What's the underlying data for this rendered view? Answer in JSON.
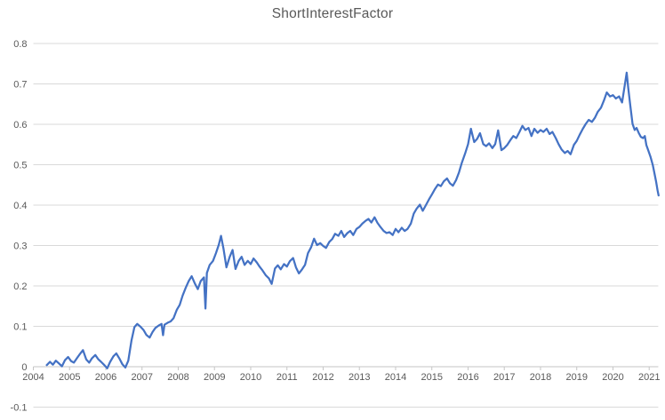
{
  "chart_data": {
    "type": "line",
    "title": "ShortInterestFactor",
    "xlabel": "",
    "ylabel": "",
    "xlim": [
      2004,
      2021.25
    ],
    "ylim": [
      -0.1,
      0.8
    ],
    "grid": "horizontal-only",
    "legend": "none",
    "xticks": [
      "2004",
      "2005",
      "2006",
      "2007",
      "2008",
      "2009",
      "2010",
      "2011",
      "2012",
      "2013",
      "2014",
      "2015",
      "2016",
      "2017",
      "2018",
      "2019",
      "2020",
      "2021"
    ],
    "yticks": [
      {
        "value": 0.8,
        "label": "0.8"
      },
      {
        "value": 0.7,
        "label": "0.7"
      },
      {
        "value": 0.6,
        "label": "0.6"
      },
      {
        "value": 0.5,
        "label": "0.5"
      },
      {
        "value": 0.4,
        "label": "0.4"
      },
      {
        "value": 0.3,
        "label": "0.3"
      },
      {
        "value": 0.2,
        "label": "0.2"
      },
      {
        "value": 0.1,
        "label": "0.1"
      },
      {
        "value": 0,
        "label": "0"
      },
      {
        "value": -0.1,
        "label": "-0.1"
      }
    ],
    "colors": {
      "series": "#4472C4",
      "gridline": "#D9D9D9",
      "axis_line": "#C6C6C6",
      "axis_text": "#595959",
      "title_text": "#595959",
      "background": "#FFFFFF"
    },
    "series": [
      {
        "name": "ShortInterestFactor",
        "color": "#4472C4",
        "points": [
          [
            2004.37,
            0.004
          ],
          [
            2004.46,
            0.012
          ],
          [
            2004.54,
            0.005
          ],
          [
            2004.62,
            0.015
          ],
          [
            2004.71,
            0.008
          ],
          [
            2004.79,
            0.001
          ],
          [
            2004.87,
            0.016
          ],
          [
            2004.96,
            0.024
          ],
          [
            2005.04,
            0.014
          ],
          [
            2005.12,
            0.01
          ],
          [
            2005.21,
            0.022
          ],
          [
            2005.29,
            0.032
          ],
          [
            2005.37,
            0.041
          ],
          [
            2005.46,
            0.018
          ],
          [
            2005.54,
            0.01
          ],
          [
            2005.62,
            0.021
          ],
          [
            2005.71,
            0.029
          ],
          [
            2005.79,
            0.019
          ],
          [
            2005.87,
            0.012
          ],
          [
            2005.96,
            0.004
          ],
          [
            2006.04,
            -0.004
          ],
          [
            2006.12,
            0.012
          ],
          [
            2006.21,
            0.026
          ],
          [
            2006.29,
            0.033
          ],
          [
            2006.37,
            0.021
          ],
          [
            2006.46,
            0.006
          ],
          [
            2006.54,
            -0.002
          ],
          [
            2006.62,
            0.015
          ],
          [
            2006.71,
            0.065
          ],
          [
            2006.79,
            0.098
          ],
          [
            2006.87,
            0.106
          ],
          [
            2006.96,
            0.099
          ],
          [
            2007.04,
            0.091
          ],
          [
            2007.12,
            0.079
          ],
          [
            2007.21,
            0.072
          ],
          [
            2007.29,
            0.086
          ],
          [
            2007.37,
            0.096
          ],
          [
            2007.46,
            0.102
          ],
          [
            2007.54,
            0.106
          ],
          [
            2007.58,
            0.078
          ],
          [
            2007.62,
            0.104
          ],
          [
            2007.71,
            0.109
          ],
          [
            2007.79,
            0.112
          ],
          [
            2007.87,
            0.12
          ],
          [
            2007.96,
            0.141
          ],
          [
            2008.04,
            0.153
          ],
          [
            2008.12,
            0.176
          ],
          [
            2008.21,
            0.196
          ],
          [
            2008.29,
            0.212
          ],
          [
            2008.37,
            0.224
          ],
          [
            2008.46,
            0.206
          ],
          [
            2008.54,
            0.192
          ],
          [
            2008.62,
            0.212
          ],
          [
            2008.71,
            0.221
          ],
          [
            2008.75,
            0.144
          ],
          [
            2008.79,
            0.232
          ],
          [
            2008.87,
            0.252
          ],
          [
            2008.96,
            0.262
          ],
          [
            2009.04,
            0.281
          ],
          [
            2009.12,
            0.302
          ],
          [
            2009.18,
            0.324
          ],
          [
            2009.25,
            0.292
          ],
          [
            2009.33,
            0.246
          ],
          [
            2009.42,
            0.272
          ],
          [
            2009.5,
            0.289
          ],
          [
            2009.58,
            0.242
          ],
          [
            2009.67,
            0.262
          ],
          [
            2009.75,
            0.272
          ],
          [
            2009.83,
            0.252
          ],
          [
            2009.92,
            0.262
          ],
          [
            2010.0,
            0.254
          ],
          [
            2010.08,
            0.268
          ],
          [
            2010.17,
            0.258
          ],
          [
            2010.25,
            0.247
          ],
          [
            2010.33,
            0.238
          ],
          [
            2010.42,
            0.226
          ],
          [
            2010.5,
            0.219
          ],
          [
            2010.58,
            0.205
          ],
          [
            2010.67,
            0.243
          ],
          [
            2010.75,
            0.251
          ],
          [
            2010.83,
            0.241
          ],
          [
            2010.92,
            0.254
          ],
          [
            2011.0,
            0.248
          ],
          [
            2011.08,
            0.261
          ],
          [
            2011.17,
            0.269
          ],
          [
            2011.25,
            0.246
          ],
          [
            2011.33,
            0.231
          ],
          [
            2011.42,
            0.241
          ],
          [
            2011.5,
            0.252
          ],
          [
            2011.58,
            0.281
          ],
          [
            2011.67,
            0.296
          ],
          [
            2011.75,
            0.317
          ],
          [
            2011.83,
            0.301
          ],
          [
            2011.92,
            0.306
          ],
          [
            2012.0,
            0.299
          ],
          [
            2012.08,
            0.294
          ],
          [
            2012.17,
            0.309
          ],
          [
            2012.25,
            0.316
          ],
          [
            2012.33,
            0.329
          ],
          [
            2012.42,
            0.324
          ],
          [
            2012.5,
            0.336
          ],
          [
            2012.58,
            0.321
          ],
          [
            2012.67,
            0.331
          ],
          [
            2012.75,
            0.336
          ],
          [
            2012.83,
            0.326
          ],
          [
            2012.92,
            0.341
          ],
          [
            2013.0,
            0.346
          ],
          [
            2013.08,
            0.354
          ],
          [
            2013.17,
            0.361
          ],
          [
            2013.25,
            0.366
          ],
          [
            2013.33,
            0.357
          ],
          [
            2013.42,
            0.37
          ],
          [
            2013.5,
            0.356
          ],
          [
            2013.58,
            0.346
          ],
          [
            2013.67,
            0.336
          ],
          [
            2013.75,
            0.331
          ],
          [
            2013.83,
            0.333
          ],
          [
            2013.92,
            0.326
          ],
          [
            2014.0,
            0.341
          ],
          [
            2014.08,
            0.333
          ],
          [
            2014.17,
            0.344
          ],
          [
            2014.25,
            0.336
          ],
          [
            2014.33,
            0.341
          ],
          [
            2014.42,
            0.354
          ],
          [
            2014.5,
            0.379
          ],
          [
            2014.58,
            0.391
          ],
          [
            2014.67,
            0.401
          ],
          [
            2014.75,
            0.386
          ],
          [
            2014.83,
            0.399
          ],
          [
            2014.92,
            0.414
          ],
          [
            2015.0,
            0.426
          ],
          [
            2015.08,
            0.439
          ],
          [
            2015.17,
            0.451
          ],
          [
            2015.25,
            0.447
          ],
          [
            2015.33,
            0.459
          ],
          [
            2015.42,
            0.466
          ],
          [
            2015.5,
            0.454
          ],
          [
            2015.58,
            0.448
          ],
          [
            2015.67,
            0.462
          ],
          [
            2015.75,
            0.481
          ],
          [
            2015.83,
            0.505
          ],
          [
            2015.92,
            0.528
          ],
          [
            2016.0,
            0.551
          ],
          [
            2016.08,
            0.589
          ],
          [
            2016.17,
            0.556
          ],
          [
            2016.25,
            0.564
          ],
          [
            2016.33,
            0.578
          ],
          [
            2016.42,
            0.551
          ],
          [
            2016.5,
            0.546
          ],
          [
            2016.58,
            0.553
          ],
          [
            2016.67,
            0.541
          ],
          [
            2016.75,
            0.551
          ],
          [
            2016.83,
            0.585
          ],
          [
            2016.92,
            0.536
          ],
          [
            2017.0,
            0.541
          ],
          [
            2017.08,
            0.549
          ],
          [
            2017.17,
            0.561
          ],
          [
            2017.25,
            0.571
          ],
          [
            2017.33,
            0.566
          ],
          [
            2017.42,
            0.581
          ],
          [
            2017.5,
            0.596
          ],
          [
            2017.58,
            0.586
          ],
          [
            2017.67,
            0.591
          ],
          [
            2017.75,
            0.571
          ],
          [
            2017.83,
            0.589
          ],
          [
            2017.92,
            0.579
          ],
          [
            2018.0,
            0.586
          ],
          [
            2018.08,
            0.581
          ],
          [
            2018.17,
            0.589
          ],
          [
            2018.25,
            0.576
          ],
          [
            2018.33,
            0.581
          ],
          [
            2018.42,
            0.566
          ],
          [
            2018.5,
            0.551
          ],
          [
            2018.58,
            0.538
          ],
          [
            2018.67,
            0.529
          ],
          [
            2018.75,
            0.534
          ],
          [
            2018.83,
            0.526
          ],
          [
            2018.92,
            0.549
          ],
          [
            2019.0,
            0.559
          ],
          [
            2019.08,
            0.574
          ],
          [
            2019.17,
            0.589
          ],
          [
            2019.25,
            0.601
          ],
          [
            2019.33,
            0.611
          ],
          [
            2019.42,
            0.606
          ],
          [
            2019.5,
            0.616
          ],
          [
            2019.58,
            0.631
          ],
          [
            2019.67,
            0.641
          ],
          [
            2019.75,
            0.659
          ],
          [
            2019.83,
            0.679
          ],
          [
            2019.92,
            0.669
          ],
          [
            2020.0,
            0.672
          ],
          [
            2020.08,
            0.664
          ],
          [
            2020.17,
            0.669
          ],
          [
            2020.25,
            0.654
          ],
          [
            2020.33,
            0.699
          ],
          [
            2020.38,
            0.728
          ],
          [
            2020.42,
            0.691
          ],
          [
            2020.48,
            0.646
          ],
          [
            2020.54,
            0.601
          ],
          [
            2020.6,
            0.586
          ],
          [
            2020.65,
            0.591
          ],
          [
            2020.71,
            0.579
          ],
          [
            2020.77,
            0.569
          ],
          [
            2020.83,
            0.566
          ],
          [
            2020.88,
            0.571
          ],
          [
            2020.92,
            0.549
          ],
          [
            2020.98,
            0.534
          ],
          [
            2021.04,
            0.519
          ],
          [
            2021.1,
            0.499
          ],
          [
            2021.15,
            0.477
          ],
          [
            2021.19,
            0.458
          ],
          [
            2021.23,
            0.437
          ],
          [
            2021.26,
            0.424
          ]
        ]
      }
    ]
  }
}
